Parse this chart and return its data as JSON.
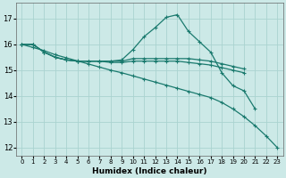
{
  "xlabel": "Humidex (Indice chaleur)",
  "bg_color": "#cce9e7",
  "grid_color": "#aad3d0",
  "line_color": "#1a7a6e",
  "xlim": [
    -0.5,
    23.5
  ],
  "ylim": [
    11.7,
    17.6
  ],
  "yticks": [
    12,
    13,
    14,
    15,
    16,
    17
  ],
  "xticks": [
    0,
    1,
    2,
    3,
    4,
    5,
    6,
    7,
    8,
    9,
    10,
    11,
    12,
    13,
    14,
    15,
    16,
    17,
    18,
    19,
    20,
    21,
    22,
    23
  ],
  "curve1_x": [
    0,
    1,
    2,
    3,
    4,
    5,
    6,
    7,
    8,
    9,
    10,
    11,
    12,
    13,
    14,
    15,
    16,
    17,
    18,
    19,
    20,
    21
  ],
  "curve1_y": [
    16.0,
    16.0,
    15.7,
    15.5,
    15.4,
    15.35,
    15.35,
    15.35,
    15.35,
    15.4,
    15.8,
    16.3,
    16.65,
    17.05,
    17.15,
    16.5,
    16.1,
    15.7,
    14.9,
    14.4,
    14.2,
    13.5
  ],
  "curve2_x": [
    0,
    1,
    2,
    3,
    4,
    5,
    6,
    7,
    8,
    9,
    10,
    11,
    12,
    13,
    14,
    15,
    16,
    17,
    18,
    19,
    20
  ],
  "curve2_y": [
    16.0,
    16.0,
    15.7,
    15.5,
    15.4,
    15.35,
    15.35,
    15.35,
    15.35,
    15.35,
    15.45,
    15.45,
    15.45,
    15.45,
    15.45,
    15.45,
    15.4,
    15.35,
    15.25,
    15.15,
    15.05
  ],
  "curve3_x": [
    0,
    1,
    2,
    3,
    4,
    5,
    6,
    7,
    8,
    9,
    10,
    11,
    12,
    13,
    14,
    15,
    16,
    17,
    18,
    19,
    20
  ],
  "curve3_y": [
    16.0,
    16.0,
    15.7,
    15.5,
    15.4,
    15.35,
    15.35,
    15.35,
    15.3,
    15.3,
    15.35,
    15.35,
    15.35,
    15.35,
    15.35,
    15.3,
    15.25,
    15.2,
    15.1,
    15.0,
    14.9
  ],
  "curve4_x": [
    0,
    1,
    2,
    3,
    4,
    5,
    6,
    7,
    8,
    9,
    10,
    11,
    12,
    13,
    14,
    15,
    16,
    17,
    18,
    19,
    20,
    21,
    22,
    23
  ],
  "curve4_y": [
    16.0,
    15.88,
    15.76,
    15.6,
    15.48,
    15.36,
    15.24,
    15.12,
    15.0,
    14.9,
    14.78,
    14.66,
    14.54,
    14.42,
    14.3,
    14.18,
    14.06,
    13.94,
    13.75,
    13.5,
    13.2,
    12.85,
    12.45,
    12.0
  ]
}
